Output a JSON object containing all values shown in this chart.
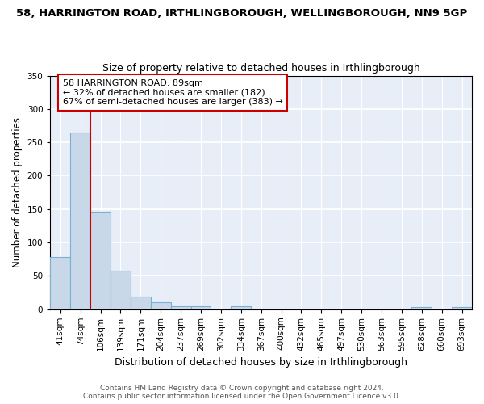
{
  "title": "58, HARRINGTON ROAD, IRTHLINGBOROUGH, WELLINGBOROUGH, NN9 5GP",
  "subtitle": "Size of property relative to detached houses in Irthlingborough",
  "xlabel": "Distribution of detached houses by size in Irthlingborough",
  "ylabel": "Number of detached properties",
  "categories": [
    "41sqm",
    "74sqm",
    "106sqm",
    "139sqm",
    "171sqm",
    "204sqm",
    "237sqm",
    "269sqm",
    "302sqm",
    "334sqm",
    "367sqm",
    "400sqm",
    "432sqm",
    "465sqm",
    "497sqm",
    "530sqm",
    "563sqm",
    "595sqm",
    "628sqm",
    "660sqm",
    "693sqm"
  ],
  "values": [
    78,
    265,
    146,
    57,
    19,
    10,
    4,
    4,
    0,
    4,
    0,
    0,
    0,
    0,
    0,
    0,
    0,
    0,
    3,
    0,
    3
  ],
  "bar_color": "#c8d8e8",
  "bar_edge_color": "#7ab0d4",
  "red_line_x": 1.5,
  "red_line_color": "#cc0000",
  "annotation_line1": "58 HARRINGTON ROAD: 89sqm",
  "annotation_line2": "← 32% of detached houses are smaller (182)",
  "annotation_line3": "67% of semi-detached houses are larger (383) →",
  "annotation_box_color": "#ffffff",
  "annotation_box_edge": "#cc0000",
  "ylim": [
    0,
    350
  ],
  "yticks": [
    0,
    50,
    100,
    150,
    200,
    250,
    300,
    350
  ],
  "background_color": "#e8eef8",
  "grid_color": "#ffffff",
  "footer": "Contains HM Land Registry data © Crown copyright and database right 2024.\nContains public sector information licensed under the Open Government Licence v3.0.",
  "title_fontsize": 9.5,
  "subtitle_fontsize": 9,
  "tick_fontsize": 7.5,
  "ylabel_fontsize": 8.5,
  "xlabel_fontsize": 9,
  "annotation_fontsize": 8,
  "footer_fontsize": 6.5
}
